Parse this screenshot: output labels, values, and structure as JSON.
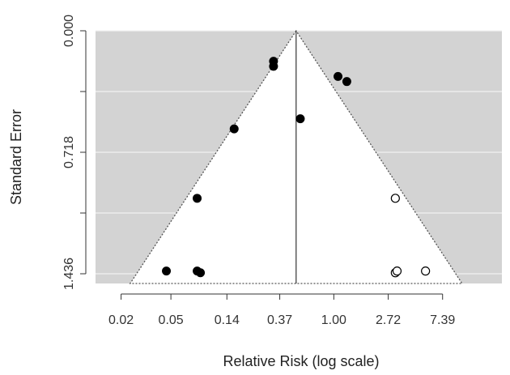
{
  "chart_data": {
    "type": "scatter",
    "subtype": "funnel-plot",
    "title": "",
    "xlabel": "Relative Risk (log scale)",
    "ylabel": "Standard Error",
    "x_scale": "log",
    "x_tick_labels": [
      "0.02",
      "0.05",
      "0.14",
      "0.37",
      "1.00",
      "2.72",
      "7.39"
    ],
    "x_ticks": [
      0.02,
      0.05,
      0.14,
      0.37,
      1.0,
      2.72,
      7.39
    ],
    "y_tick_labels": [
      "0.000",
      "0.718",
      "1.436"
    ],
    "y_ticks": [
      0.0,
      0.718,
      1.436
    ],
    "y_inverted": true,
    "y_gridlines": [
      0.0,
      0.359,
      0.718,
      1.077,
      1.436
    ],
    "xlim": [
      0.0125,
      22
    ],
    "ylim": [
      1.436,
      0.0
    ],
    "pooled_estimate": 0.5,
    "funnel_region": "white triangle with dotted edges, apex at pooled estimate",
    "background_color": "#d3d3d3",
    "grid": true,
    "series": [
      {
        "style": "filled",
        "points": [
          {
            "x": 0.33,
            "y": 0.18
          },
          {
            "x": 0.33,
            "y": 0.21
          },
          {
            "x": 1.08,
            "y": 0.27
          },
          {
            "x": 1.27,
            "y": 0.3
          },
          {
            "x": 0.16,
            "y": 0.58
          },
          {
            "x": 0.54,
            "y": 0.52
          },
          {
            "x": 0.081,
            "y": 0.99
          },
          {
            "x": 0.046,
            "y": 1.42
          },
          {
            "x": 0.081,
            "y": 1.42
          },
          {
            "x": 0.086,
            "y": 1.43
          }
        ]
      },
      {
        "style": "open",
        "points": [
          {
            "x": 3.1,
            "y": 0.99
          },
          {
            "x": 3.1,
            "y": 1.43
          },
          {
            "x": 3.2,
            "y": 1.42
          },
          {
            "x": 5.4,
            "y": 1.42
          }
        ]
      }
    ]
  }
}
